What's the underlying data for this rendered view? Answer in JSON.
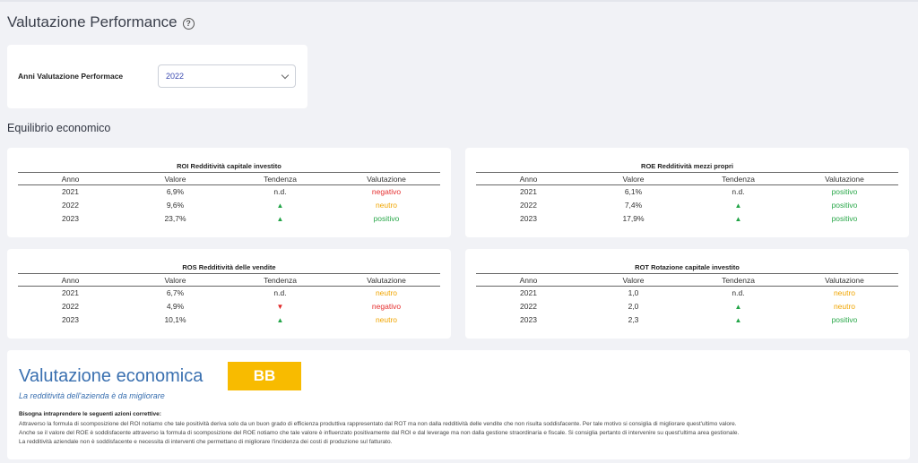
{
  "header": {
    "title": "Valutazione Performance",
    "help_icon": "question-circle-icon"
  },
  "year_filter": {
    "label": "Anni Valutazione Performace",
    "selected": "2022"
  },
  "section": {
    "title": "Equilibrio economico"
  },
  "columns": {
    "anno": "Anno",
    "valore": "Valore",
    "tendenza": "Tendenza",
    "valutazione": "Valutazione"
  },
  "colors": {
    "positivo": "#2aa84a",
    "neutro": "#f0a500",
    "negativo": "#e53030",
    "badge": "#f8bb00",
    "accent": "#3a70b0"
  },
  "metrics": {
    "roi": {
      "title": "ROI Redditività capitale investito",
      "rows": [
        {
          "anno": "2021",
          "valore": "6,9%",
          "tendenza": "n.d.",
          "valutazione": "negativo"
        },
        {
          "anno": "2022",
          "valore": "9,6%",
          "tendenza": "▲",
          "valutazione": "neutro"
        },
        {
          "anno": "2023",
          "valore": "23,7%",
          "tendenza": "▲",
          "valutazione": "positivo"
        }
      ]
    },
    "roe": {
      "title": "ROE Redditività mezzi propri",
      "rows": [
        {
          "anno": "2021",
          "valore": "6,1%",
          "tendenza": "n.d.",
          "valutazione": "positivo"
        },
        {
          "anno": "2022",
          "valore": "7,4%",
          "tendenza": "▲",
          "valutazione": "positivo"
        },
        {
          "anno": "2023",
          "valore": "17,9%",
          "tendenza": "▲",
          "valutazione": "positivo"
        }
      ]
    },
    "ros": {
      "title": "ROS Redditività delle vendite",
      "rows": [
        {
          "anno": "2021",
          "valore": "6,7%",
          "tendenza": "n.d.",
          "valutazione": "neutro"
        },
        {
          "anno": "2022",
          "valore": "4,9%",
          "tendenza": "▼",
          "valutazione": "negativo"
        },
        {
          "anno": "2023",
          "valore": "10,1%",
          "tendenza": "▲",
          "valutazione": "neutro"
        }
      ]
    },
    "rot": {
      "title": "ROT Rotazione capitale investito",
      "rows": [
        {
          "anno": "2021",
          "valore": "1,0",
          "tendenza": "n.d.",
          "valutazione": "neutro"
        },
        {
          "anno": "2022",
          "valore": "2,0",
          "tendenza": "▲",
          "valutazione": "neutro"
        },
        {
          "anno": "2023",
          "valore": "2,3",
          "tendenza": "▲",
          "valutazione": "positivo"
        }
      ]
    }
  },
  "evaluation": {
    "title": "Valutazione economica",
    "badge": "BB",
    "subtitle": "La redditività dell'azienda è da migliorare",
    "actions_heading": "Bisogna intraprendere le seguenti azioni correttive:",
    "lines": [
      "Attraverso la formula di scomposizione del ROI notiamo che tale positività deriva solo da un buon grado di efficienza produttiva rappresentato dal ROT ma non dalla redditività delle vendite che non risulta soddisfacente. Per tale motivo si consiglia di migliorare quest'ultimo valore.",
      "Anche se il valore del ROE è soddisfacente attraverso la formula di scomposizione del ROE notiamo che tale valore è influenzato positivamente dal ROI e dal leverage ma non dalla gestione straordinaria e fiscale. Si consiglia pertanto di intervenire su quest'ultima area gestionale.",
      "La redditività aziendale non è soddisfacente e necessita di interventi che permettano di migliorare l'incidenza dei costi di produzione sul fatturato."
    ]
  }
}
